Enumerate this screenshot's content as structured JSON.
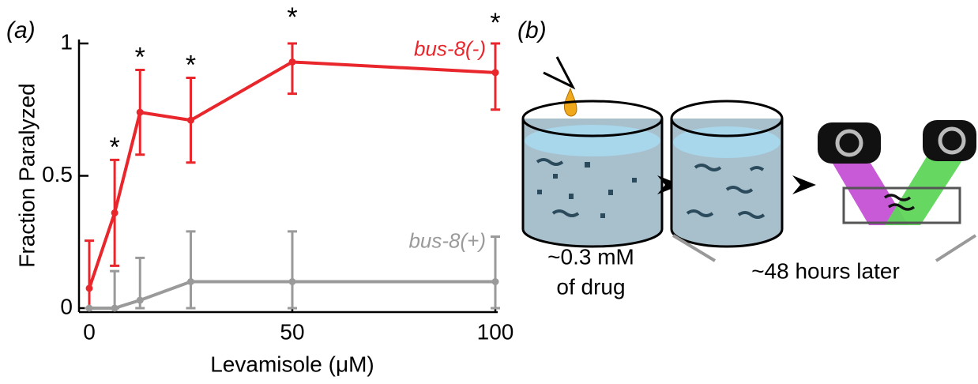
{
  "chart_data": {
    "type": "line",
    "panel_label": "(a)",
    "x_label": "Levamisole (μM)",
    "y_label": "Fraction Paralyzed",
    "x": [
      0,
      6.25,
      12.5,
      25,
      50,
      100
    ],
    "xlim": [
      0,
      100
    ],
    "xticks": [
      0,
      50,
      100
    ],
    "ylim": [
      0,
      1
    ],
    "yticks": [
      0,
      0.5,
      1
    ],
    "series": [
      {
        "name": "bus-8(-)",
        "color": "#e8262b",
        "values": [
          0.075,
          0.36,
          0.74,
          0.71,
          0.93,
          0.89
        ],
        "error": [
          0.18,
          0.2,
          0.16,
          0.16,
          0.12,
          0.14
        ]
      },
      {
        "name": "bus-8(+)",
        "color": "#9a9a9a",
        "values": [
          0,
          0,
          0.03,
          0.1,
          0.1,
          0.1
        ],
        "error": [
          0,
          0.14,
          0.16,
          0.19,
          0.19,
          0.17
        ]
      }
    ],
    "significance": {
      "label": "*",
      "x": [
        6.25,
        12.5,
        25,
        50,
        100
      ]
    }
  },
  "diagram": {
    "panel_label": "(b)",
    "dose_line1": "~0.3 mM",
    "dose_line2": "of drug",
    "wait_label": "~48 hours later"
  }
}
